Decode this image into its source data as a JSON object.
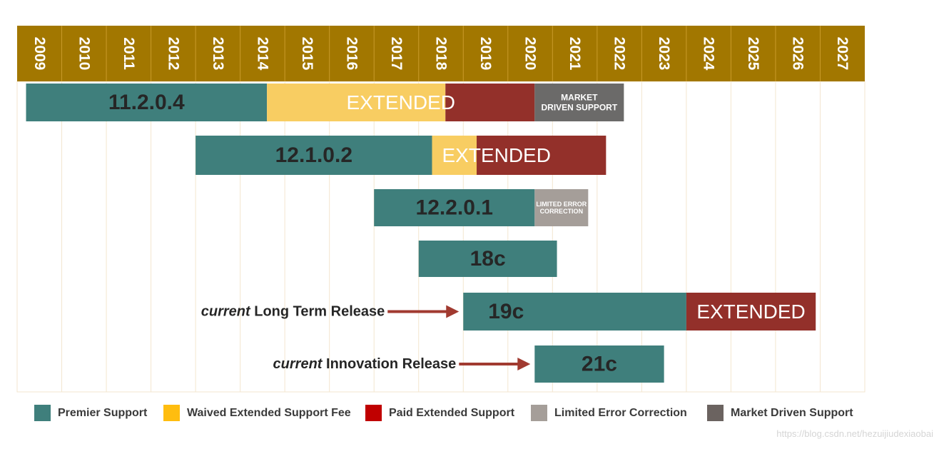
{
  "chart_data": {
    "type": "gantt",
    "years": [
      "2009",
      "2010",
      "2011",
      "2012",
      "2013",
      "2014",
      "2015",
      "2016",
      "2017",
      "2018",
      "2019",
      "2020",
      "2021",
      "2022",
      "2023",
      "2024",
      "2025",
      "2026",
      "2027"
    ],
    "colors": {
      "header": "#a27700",
      "premier": "#3f7f7c",
      "waived": "#f8cd62",
      "paid": "#93302a",
      "limited": "#a59e99",
      "market": "#6b6a69"
    },
    "releases": [
      {
        "name": "11.2.0.4",
        "segments": [
          {
            "type": "premier",
            "start": 2009.2,
            "end": 2014.6,
            "label": "11.2.0.4"
          },
          {
            "type": "waived",
            "start": 2014.6,
            "end": 2018.6,
            "label": ""
          },
          {
            "type": "paid",
            "start": 2018.6,
            "end": 2020.6,
            "label": ""
          },
          {
            "type": "market",
            "start": 2020.6,
            "end": 2022.6,
            "label": "MARKET\nDRIVEN SUPPORT"
          }
        ],
        "overlay_label": "EXTENDED"
      },
      {
        "name": "12.1.0.2",
        "segments": [
          {
            "type": "premier",
            "start": 2013.0,
            "end": 2018.3,
            "label": "12.1.0.2"
          },
          {
            "type": "waived",
            "start": 2018.3,
            "end": 2019.3,
            "label": ""
          },
          {
            "type": "paid",
            "start": 2019.3,
            "end": 2022.2,
            "label": ""
          }
        ],
        "overlay_label": "EXTENDED"
      },
      {
        "name": "12.2.0.1",
        "segments": [
          {
            "type": "premier",
            "start": 2017.0,
            "end": 2020.6,
            "label": "12.2.0.1"
          },
          {
            "type": "limited",
            "start": 2020.6,
            "end": 2021.8,
            "label": "LIMITED ERROR\nCORRECTION"
          }
        ]
      },
      {
        "name": "18c",
        "segments": [
          {
            "type": "premier",
            "start": 2018.0,
            "end": 2021.1,
            "label": "18c"
          }
        ]
      },
      {
        "name": "19c",
        "annotation": {
          "em": "current",
          "text": " Long Term Release"
        },
        "segments": [
          {
            "type": "premier",
            "start": 2019.0,
            "end": 2024.0,
            "label": "19c"
          },
          {
            "type": "paid",
            "start": 2024.0,
            "end": 2026.9,
            "label": "EXTENDED"
          }
        ]
      },
      {
        "name": "21c",
        "annotation": {
          "em": "current",
          "text": " Innovation Release"
        },
        "segments": [
          {
            "type": "premier",
            "start": 2020.6,
            "end": 2023.5,
            "label": "21c"
          }
        ]
      }
    ],
    "legend": [
      {
        "type": "premier",
        "label": "Premier Support"
      },
      {
        "type": "waived",
        "label": "Waived Extended Support Fee"
      },
      {
        "type": "paid",
        "label": "Paid Extended Support"
      },
      {
        "type": "limited",
        "label": "Limited Error Correction"
      },
      {
        "type": "market",
        "label": "Market Driven Support"
      }
    ],
    "legend_swatch_colors": {
      "premier": "#3f7f7c",
      "waived": "#ffbd0f",
      "paid": "#c00000",
      "limited": "#a59e99",
      "market": "#6b6360"
    }
  },
  "watermark": "https://blog.csdn.net/hezuijiudexiaobai"
}
